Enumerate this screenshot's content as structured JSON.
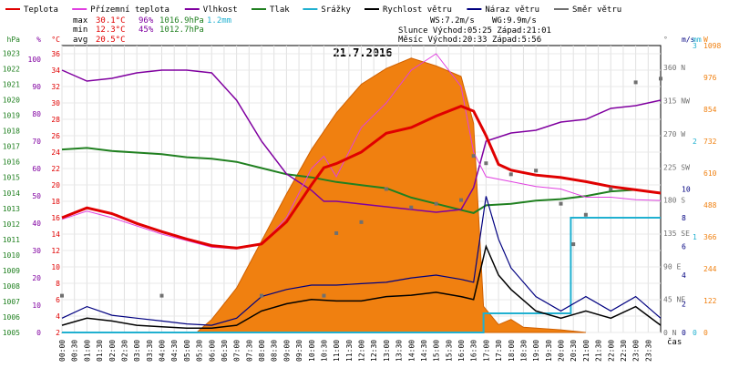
{
  "chart_data": {
    "type": "line",
    "title": "21.7.2016",
    "x_tick_labels": [
      "00:00",
      "00:30",
      "01:00",
      "01:30",
      "02:00",
      "02:30",
      "03:00",
      "03:30",
      "04:00",
      "04:30",
      "05:00",
      "05:30",
      "06:00",
      "06:30",
      "07:00",
      "07:30",
      "08:00",
      "08:30",
      "09:00",
      "09:30",
      "10:00",
      "10:30",
      "11:00",
      "11:30",
      "12:00",
      "12:30",
      "13:00",
      "13:30",
      "14:00",
      "14:30",
      "15:00",
      "15:30",
      "16:00",
      "16:30",
      "17:00",
      "17:30",
      "18:00",
      "18:30",
      "19:00",
      "19:30",
      "20:00",
      "20:30",
      "21:00",
      "21:30",
      "22:00",
      "22:30",
      "23:00",
      "23:30"
    ],
    "x_axis_label": "čas",
    "legend": [
      {
        "name": "Teplota",
        "color": "#e00000"
      },
      {
        "name": "Přízemní teplota",
        "color": "#e040e0"
      },
      {
        "name": "Vlhkost",
        "color": "#8000a0"
      },
      {
        "name": "Tlak",
        "color": "#208020"
      },
      {
        "name": "Srážky",
        "color": "#20b0d0"
      },
      {
        "name": "Rychlost větru",
        "color": "#000000"
      },
      {
        "name": "Náraz větru",
        "color": "#000080"
      },
      {
        "name": "Směr větru",
        "color": "#707070"
      }
    ],
    "stats": {
      "max_label": "max",
      "max_temp": "30.1°C",
      "max_hum": "96%",
      "max_press": "1016.9hPa",
      "max_rain": "1.2mm",
      "min_label": "min",
      "min_temp": "12.3°C",
      "min_hum": "45%",
      "min_press": "1012.7hPa",
      "avg_label": "avg",
      "avg_temp": "20.5°C"
    },
    "info": {
      "ws": "WS:7.2m/s",
      "wg": "WG:9.9m/s",
      "slunce": "Slunce Východ:05:25  Západ:21:01",
      "mesic": "Měsíc  Východ:20:33  Západ:5:56"
    },
    "axes": {
      "hpa": {
        "unit": "hPa",
        "ticks": [
          "1005",
          "1006",
          "1007",
          "1008",
          "1009",
          "1010",
          "1011",
          "1012",
          "1013",
          "1014",
          "1015",
          "1016",
          "1017",
          "1018",
          "1019",
          "1020",
          "1021",
          "1022",
          "1023"
        ],
        "range": [
          1005,
          1023.5
        ]
      },
      "percent": {
        "unit": "%",
        "ticks": [
          "0",
          "10",
          "20",
          "30",
          "40",
          "50",
          "60",
          "70",
          "80",
          "90",
          "100"
        ],
        "range": [
          0,
          105
        ]
      },
      "celsius": {
        "unit": "°C",
        "ticks": [
          "2",
          "4",
          "6",
          "8",
          "10",
          "12",
          "14",
          "16",
          "18",
          "20",
          "22",
          "24",
          "26",
          "28",
          "30",
          "32",
          "34",
          "36"
        ],
        "range": [
          2,
          37
        ]
      },
      "direction": {
        "unit": "°",
        "ticks": [
          "0 N",
          "45 NE",
          "90 E",
          "135 SE",
          "180 S",
          "225 SW",
          "270 W",
          "315 NW",
          "360 N"
        ],
        "range": [
          0,
          390
        ]
      },
      "wind": {
        "unit": "m/s",
        "ticks": [
          "0",
          "2",
          "4",
          "6",
          "8",
          "10"
        ],
        "range": [
          0,
          20
        ]
      },
      "rain": {
        "unit": "mm",
        "ticks": [
          "0",
          "1",
          "2",
          "3"
        ],
        "range": [
          0,
          3
        ]
      },
      "solar": {
        "unit": "W",
        "ticks": [
          "0",
          "122",
          "244",
          "366",
          "488",
          "610",
          "732",
          "854",
          "976",
          "1098"
        ],
        "range": [
          0,
          1098
        ]
      }
    },
    "series": {
      "temperature_C": [
        [
          0,
          16.0
        ],
        [
          1,
          17.2
        ],
        [
          2,
          16.5
        ],
        [
          3,
          15.3
        ],
        [
          4,
          14.3
        ],
        [
          5,
          13.4
        ],
        [
          6,
          12.6
        ],
        [
          7,
          12.3
        ],
        [
          8,
          12.8
        ],
        [
          9,
          15.5
        ],
        [
          10,
          20.0
        ],
        [
          10.5,
          22.1
        ],
        [
          11,
          22.6
        ],
        [
          12,
          24.0
        ],
        [
          13,
          26.3
        ],
        [
          14,
          27.0
        ],
        [
          15,
          28.4
        ],
        [
          16,
          29.6
        ],
        [
          16.5,
          29.0
        ],
        [
          17,
          26.0
        ],
        [
          17.5,
          22.5
        ],
        [
          18,
          21.8
        ],
        [
          19,
          21.2
        ],
        [
          20,
          20.9
        ],
        [
          21,
          20.4
        ],
        [
          22,
          19.8
        ],
        [
          23,
          19.4
        ],
        [
          24,
          19.0
        ]
      ],
      "ground_temp_C": [
        [
          0,
          15.8
        ],
        [
          1,
          16.8
        ],
        [
          2,
          16.0
        ],
        [
          3,
          15.0
        ],
        [
          4,
          14.0
        ],
        [
          5,
          13.2
        ],
        [
          6,
          12.4
        ],
        [
          7,
          12.2
        ],
        [
          8,
          12.7
        ],
        [
          9,
          16.0
        ],
        [
          10,
          22.0
        ],
        [
          10.5,
          23.5
        ],
        [
          11,
          21.0
        ],
        [
          12,
          27.0
        ],
        [
          13,
          30.0
        ],
        [
          14,
          34.0
        ],
        [
          15,
          36.0
        ],
        [
          16,
          32.0
        ],
        [
          16.5,
          24.0
        ],
        [
          17,
          21.0
        ],
        [
          18,
          20.4
        ],
        [
          19,
          19.8
        ],
        [
          20,
          19.5
        ],
        [
          21,
          18.5
        ],
        [
          22,
          18.5
        ],
        [
          23,
          18.2
        ],
        [
          24,
          18.1
        ]
      ],
      "humidity_pct": [
        [
          0,
          96
        ],
        [
          1,
          92
        ],
        [
          2,
          93
        ],
        [
          3,
          95
        ],
        [
          4,
          96
        ],
        [
          5,
          96
        ],
        [
          6,
          95
        ],
        [
          7,
          85
        ],
        [
          8,
          70
        ],
        [
          9,
          58
        ],
        [
          10,
          52
        ],
        [
          10.5,
          48
        ],
        [
          11,
          48
        ],
        [
          12,
          47
        ],
        [
          13,
          46
        ],
        [
          14,
          45
        ],
        [
          15,
          44
        ],
        [
          16,
          45
        ],
        [
          16.5,
          53
        ],
        [
          17,
          70
        ],
        [
          18,
          73
        ],
        [
          19,
          74
        ],
        [
          20,
          77
        ],
        [
          21,
          78
        ],
        [
          22,
          82
        ],
        [
          23,
          83
        ],
        [
          24,
          85
        ]
      ],
      "pressure_hPa": [
        [
          0,
          1016.8
        ],
        [
          1,
          1016.9
        ],
        [
          2,
          1016.7
        ],
        [
          3,
          1016.6
        ],
        [
          4,
          1016.5
        ],
        [
          5,
          1016.3
        ],
        [
          6,
          1016.2
        ],
        [
          7,
          1016.0
        ],
        [
          8,
          1015.6
        ],
        [
          9,
          1015.2
        ],
        [
          10,
          1015.0
        ],
        [
          11,
          1014.7
        ],
        [
          12,
          1014.5
        ],
        [
          13,
          1014.3
        ],
        [
          14,
          1013.7
        ],
        [
          15,
          1013.3
        ],
        [
          16,
          1012.9
        ],
        [
          16.5,
          1012.7
        ],
        [
          17,
          1013.2
        ],
        [
          18,
          1013.3
        ],
        [
          19,
          1013.5
        ],
        [
          20,
          1013.6
        ],
        [
          21,
          1013.8
        ],
        [
          22,
          1014.1
        ],
        [
          23,
          1014.2
        ],
        [
          24,
          1014.0
        ]
      ],
      "wind_direction_deg": [
        [
          0,
          50
        ],
        [
          4,
          50
        ],
        [
          8,
          50
        ],
        [
          10.5,
          50
        ],
        [
          11,
          135
        ],
        [
          12,
          150
        ],
        [
          13,
          195
        ],
        [
          14,
          170
        ],
        [
          15,
          175
        ],
        [
          16,
          180
        ],
        [
          16.5,
          240
        ],
        [
          17,
          230
        ],
        [
          18,
          215
        ],
        [
          19,
          220
        ],
        [
          20,
          175
        ],
        [
          20.5,
          120
        ],
        [
          21,
          160
        ],
        [
          22,
          195
        ],
        [
          23,
          340
        ],
        [
          24,
          345
        ]
      ],
      "rain_mm": [
        [
          0,
          0
        ],
        [
          16.9,
          0
        ],
        [
          16.9,
          0.2
        ],
        [
          20.4,
          0.2
        ],
        [
          20.4,
          1.2
        ],
        [
          24,
          1.2
        ]
      ],
      "solar_W": [
        [
          5.4,
          0
        ],
        [
          6,
          50
        ],
        [
          7,
          170
        ],
        [
          8,
          350
        ],
        [
          9,
          530
        ],
        [
          10,
          700
        ],
        [
          11,
          840
        ],
        [
          12,
          950
        ],
        [
          13,
          1010
        ],
        [
          14,
          1050
        ],
        [
          15,
          1020
        ],
        [
          16,
          980
        ],
        [
          16.5,
          800
        ],
        [
          16.9,
          100
        ],
        [
          17.5,
          30
        ],
        [
          18,
          50
        ],
        [
          18.5,
          20
        ],
        [
          20,
          10
        ],
        [
          21,
          0
        ]
      ],
      "wind_speed_ms": [
        [
          0,
          0.5
        ],
        [
          1,
          1.0
        ],
        [
          2,
          0.8
        ],
        [
          3,
          0.5
        ],
        [
          4,
          0.4
        ],
        [
          5,
          0.3
        ],
        [
          6,
          0.3
        ],
        [
          7,
          0.5
        ],
        [
          8,
          1.5
        ],
        [
          9,
          2.0
        ],
        [
          10,
          2.3
        ],
        [
          11,
          2.2
        ],
        [
          12,
          2.2
        ],
        [
          13,
          2.5
        ],
        [
          14,
          2.6
        ],
        [
          15,
          2.8
        ],
        [
          16,
          2.5
        ],
        [
          16.5,
          2.3
        ],
        [
          17,
          6.0
        ],
        [
          17.5,
          4.0
        ],
        [
          18,
          3.0
        ],
        [
          19,
          1.5
        ],
        [
          20,
          1.0
        ],
        [
          21,
          1.5
        ],
        [
          22,
          1.0
        ],
        [
          23,
          1.8
        ],
        [
          24,
          0.5
        ]
      ],
      "wind_gust_ms": [
        [
          0,
          1.0
        ],
        [
          1,
          1.8
        ],
        [
          2,
          1.2
        ],
        [
          3,
          1.0
        ],
        [
          4,
          0.8
        ],
        [
          5,
          0.6
        ],
        [
          6,
          0.5
        ],
        [
          7,
          1.0
        ],
        [
          8,
          2.5
        ],
        [
          9,
          3.0
        ],
        [
          10,
          3.3
        ],
        [
          11,
          3.3
        ],
        [
          12,
          3.4
        ],
        [
          13,
          3.5
        ],
        [
          14,
          3.8
        ],
        [
          15,
          4.0
        ],
        [
          16,
          3.7
        ],
        [
          16.5,
          3.5
        ],
        [
          17,
          9.5
        ],
        [
          17.5,
          6.5
        ],
        [
          18,
          4.5
        ],
        [
          19,
          2.5
        ],
        [
          20,
          1.5
        ],
        [
          21,
          2.5
        ],
        [
          22,
          1.5
        ],
        [
          23,
          2.5
        ],
        [
          24,
          1.0
        ]
      ]
    }
  }
}
